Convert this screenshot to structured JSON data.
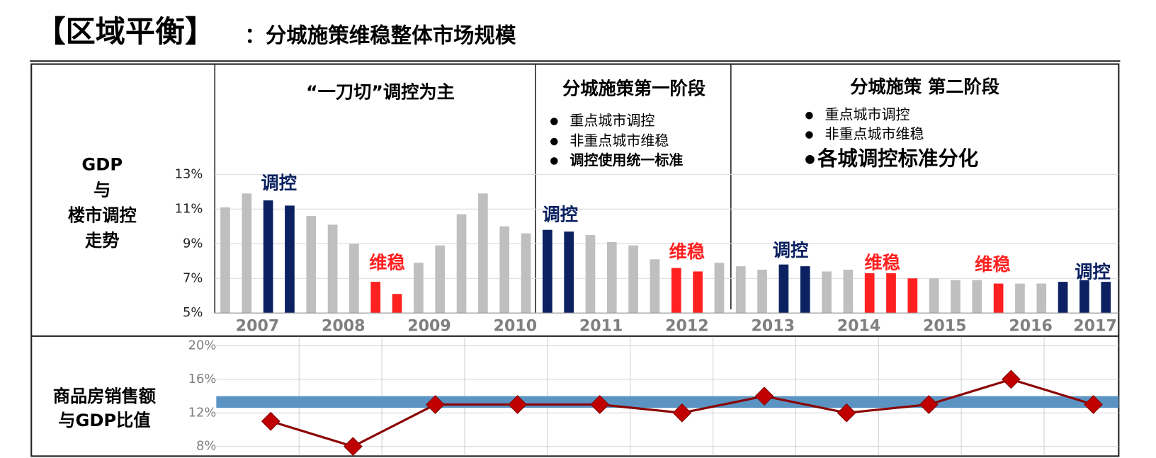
{
  "title": {
    "main": "【区域平衡】",
    "sub": "：分城施策维稳整体市场规模"
  },
  "chart_data": [
    {
      "type": "bar",
      "ylabel": [
        "GDP",
        "与",
        "楼市调控",
        "走势"
      ],
      "years": [
        "2007",
        "2008",
        "2009",
        "2010",
        "2011",
        "2012",
        "2013",
        "2014",
        "2015",
        "2016",
        "2017"
      ],
      "categories": [
        null,
        null,
        null,
        null,
        null,
        null,
        null,
        null,
        null,
        null,
        null,
        null,
        null,
        null,
        null,
        null,
        null,
        null,
        null,
        null,
        null,
        null,
        null,
        null,
        null,
        null,
        null,
        null,
        null,
        null,
        null,
        null,
        null,
        null,
        null,
        null,
        null,
        null,
        null,
        null,
        null,
        null
      ],
      "values": [
        11.1,
        11.9,
        11.5,
        11.2,
        10.6,
        10.1,
        9.0,
        6.8,
        6.1,
        7.9,
        8.9,
        10.7,
        11.9,
        10.0,
        9.6,
        9.8,
        9.7,
        9.5,
        9.1,
        8.9,
        8.1,
        7.6,
        7.4,
        7.9,
        7.7,
        7.5,
        7.8,
        7.7,
        7.4,
        7.5,
        7.3,
        7.3,
        7.0,
        7.0,
        6.9,
        6.9,
        6.7,
        6.7,
        6.7,
        6.8,
        6.9,
        6.8
      ],
      "colors": [
        "#bfbfbf",
        "#bfbfbf",
        "#0b2161",
        "#0b2161",
        "#bfbfbf",
        "#bfbfbf",
        "#bfbfbf",
        "#ff2020",
        "#ff2020",
        "#bfbfbf",
        "#bfbfbf",
        "#bfbfbf",
        "#bfbfbf",
        "#bfbfbf",
        "#bfbfbf",
        "#0b2161",
        "#0b2161",
        "#bfbfbf",
        "#bfbfbf",
        "#bfbfbf",
        "#bfbfbf",
        "#ff2020",
        "#ff2020",
        "#bfbfbf",
        "#bfbfbf",
        "#bfbfbf",
        "#0b2161",
        "#0b2161",
        "#bfbfbf",
        "#bfbfbf",
        "#ff2020",
        "#ff2020",
        "#ff2020",
        "#bfbfbf",
        "#bfbfbf",
        "#bfbfbf",
        "#ff2020",
        "#bfbfbf",
        "#bfbfbf",
        "#0b2161",
        "#0b2161",
        "#0b2161"
      ],
      "ylim": [
        5,
        13
      ],
      "yticks": [
        {
          "value": 5,
          "label": "5%"
        },
        {
          "value": 7,
          "label": "7%"
        },
        {
          "value": 9,
          "label": "9%"
        },
        {
          "value": 11,
          "label": "11%"
        },
        {
          "value": 13,
          "label": "13%"
        }
      ],
      "grid": true,
      "phases": [
        {
          "title": "“一刀切”调控为主",
          "bullets": []
        },
        {
          "title": "分城施策第一阶段",
          "bullets": [
            "重点城市调控",
            "非重点城市维稳",
            "调控使用统一标准"
          ]
        },
        {
          "title": "分城施策 第二阶段",
          "bullets": [
            "重点城市调控",
            "非重点城市维稳",
            "各城调控标准分化"
          ]
        }
      ],
      "annotations": [
        {
          "text": "调控",
          "color": "#0b2161"
        },
        {
          "text": "维稳",
          "color": "#ff2020"
        },
        {
          "text": "调控",
          "color": "#0b2161"
        },
        {
          "text": "维稳",
          "color": "#ff2020"
        },
        {
          "text": "调控",
          "color": "#0b2161"
        },
        {
          "text": "维稳",
          "color": "#ff2020"
        },
        {
          "text": "维稳",
          "color": "#ff2020"
        },
        {
          "text": "调控",
          "color": "#0b2161"
        }
      ]
    },
    {
      "type": "line",
      "ylabel": [
        "商品房销售额",
        "与GDP比值"
      ],
      "categories": [
        null,
        null,
        null,
        null,
        null,
        null,
        null,
        null,
        null,
        null,
        null
      ],
      "values": [
        11,
        8,
        13,
        13,
        13,
        12,
        14,
        12,
        13,
        16,
        13
      ],
      "color": "#8b0000",
      "marker_color": "#c00000",
      "band": [
        12.6,
        14
      ],
      "band_color": "#5b93c3",
      "ylim": [
        7,
        21
      ],
      "yticks": [
        {
          "value": 8,
          "label": "8%"
        },
        {
          "value": 12,
          "label": "12%"
        },
        {
          "value": 16,
          "label": "16%"
        },
        {
          "value": 20,
          "label": "20%"
        }
      ],
      "grid": true
    }
  ]
}
